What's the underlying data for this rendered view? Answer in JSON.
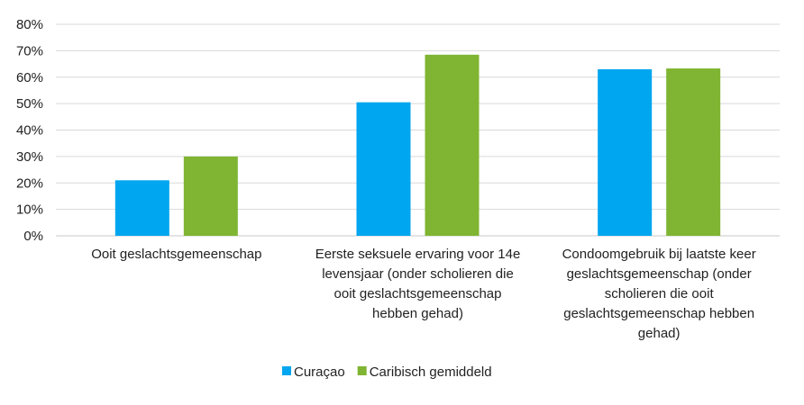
{
  "chart_data": {
    "type": "bar",
    "categories": [
      [
        "Ooit geslachtsgemeenschap"
      ],
      [
        "Eerste seksuele ervaring voor 14e",
        "levensjaar (onder scholieren die",
        "ooit geslachtsgemeenschap",
        "hebben gehad)"
      ],
      [
        "Condoomgebruik bij laatste keer",
        "geslachtsgemeenschap (onder",
        "scholieren die ooit",
        "geslachtsgemeenschap hebben",
        "gehad)"
      ]
    ],
    "series": [
      {
        "name": "Curaçao",
        "color": "#00a6ef",
        "values": [
          0.21,
          0.505,
          0.63
        ]
      },
      {
        "name": "Caribisch gemiddeld",
        "color": "#7fb532",
        "values": [
          0.3,
          0.685,
          0.633
        ]
      }
    ],
    "y_ticks": [
      "0%",
      "10%",
      "20%",
      "30%",
      "40%",
      "50%",
      "60%",
      "70%",
      "80%"
    ],
    "ylim": [
      0,
      0.8
    ],
    "grid": true,
    "legend": "bottom"
  }
}
